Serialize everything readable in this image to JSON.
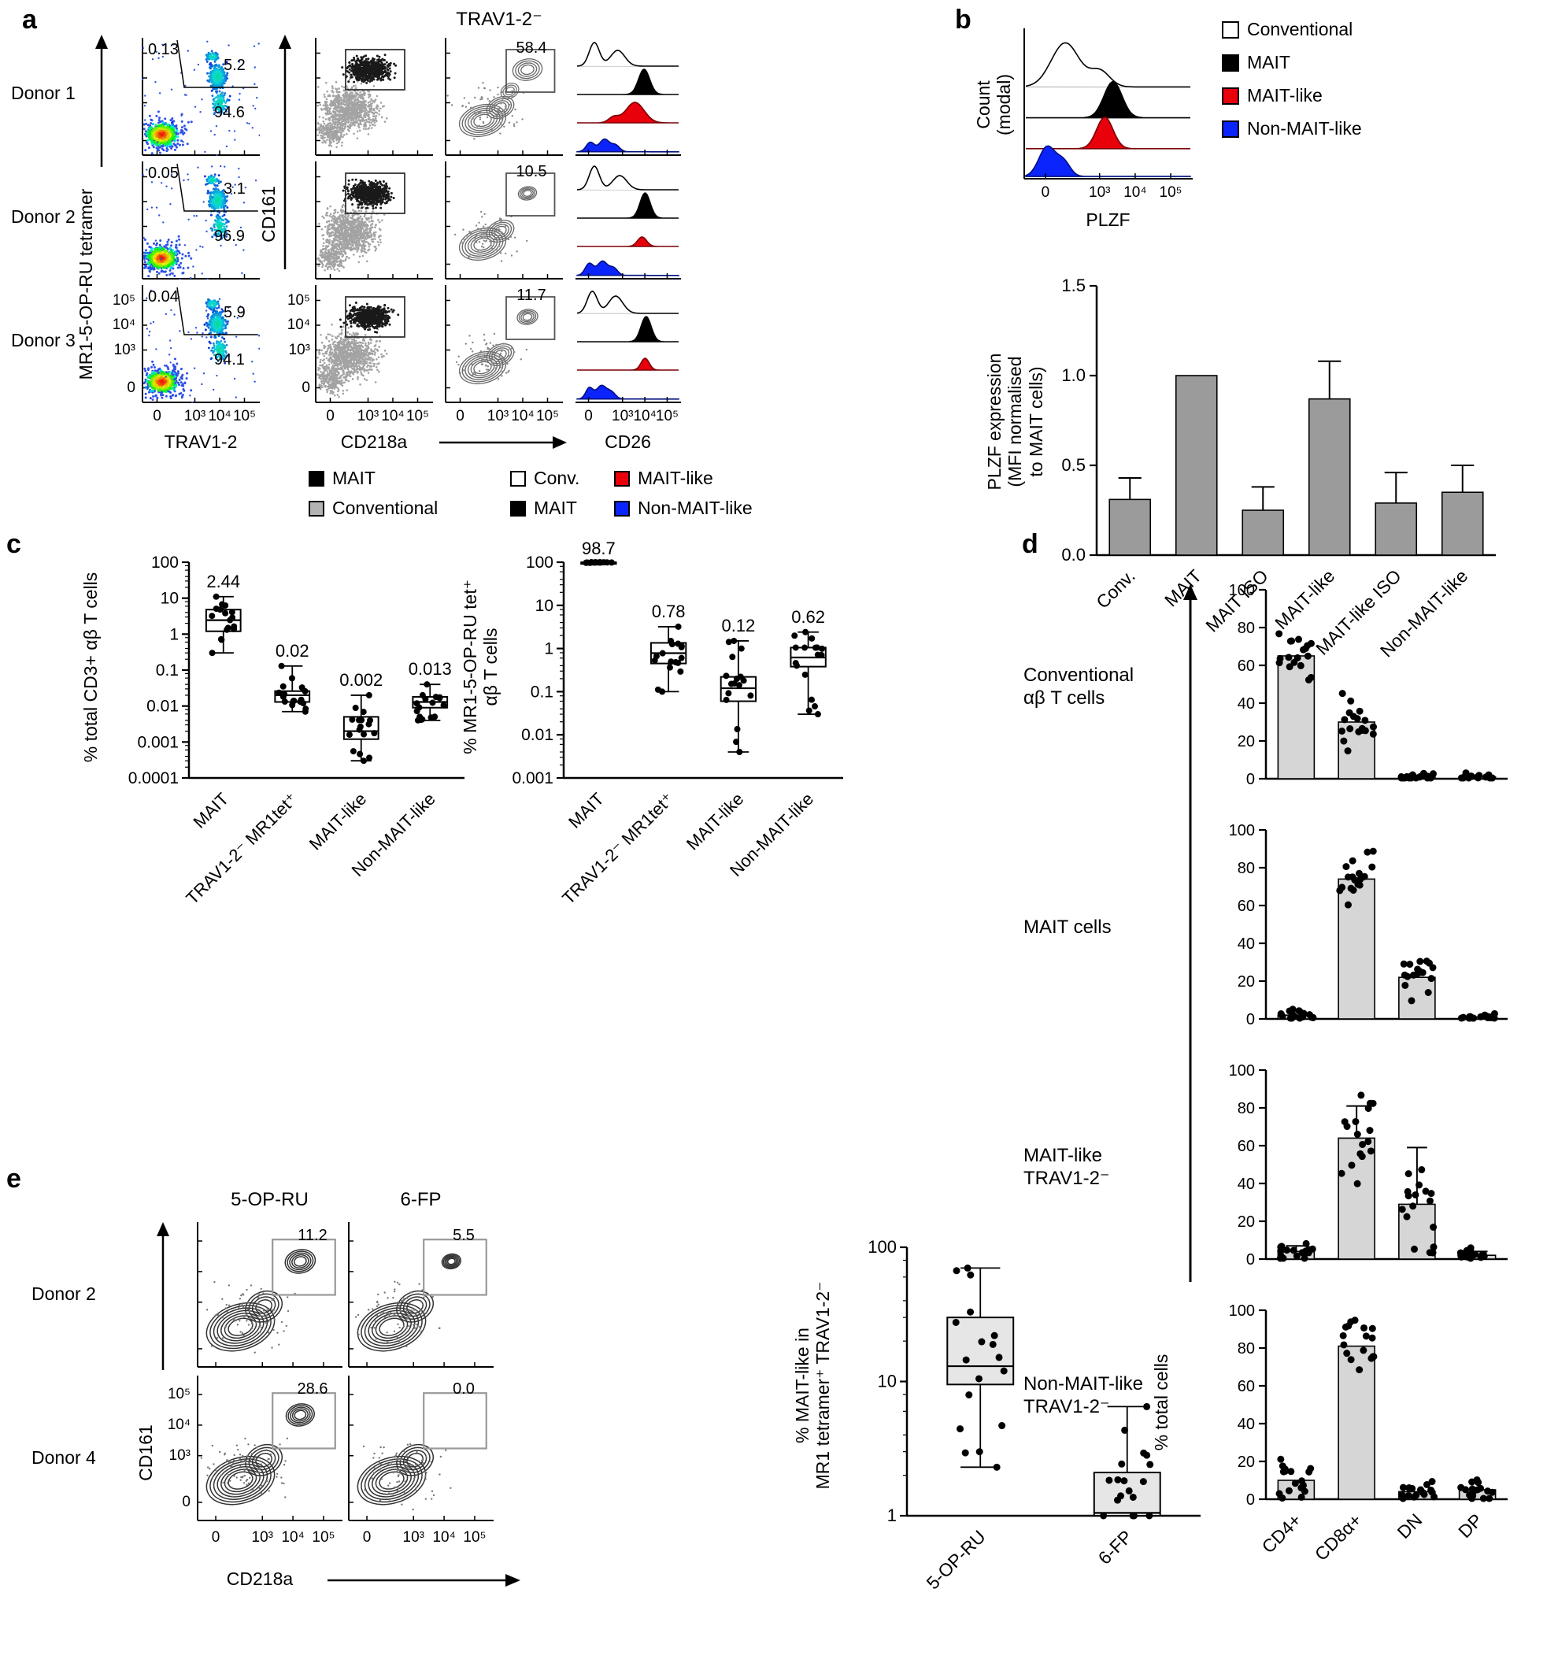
{
  "colors": {
    "mait_black": "#000000",
    "conventional_gray": "#b3b3b3",
    "conv_white": "#ffffff",
    "mait_like_red": "#e8000b",
    "non_mait_like_blue": "#0b24fb",
    "bar_gray": "#9b9b9b",
    "bar_light_gray": "#d6d6d6"
  },
  "panel_a": {
    "label": "a",
    "header": "TRAV1-2⁻",
    "donor_labels": [
      "Donor 1",
      "Donor 2",
      "Donor 3"
    ],
    "tetramer_axis": "MR1-5-OP-RU tetramer",
    "trav_axis": "TRAV1-2",
    "cd161_axis": "CD161",
    "cd218a_axis": "CD218a",
    "cd26_axis": "CD26",
    "log_ticks": [
      "0",
      "10³",
      "10⁴",
      "10⁵"
    ],
    "tetramer_gates": [
      {
        "upper_left": "0.13",
        "upper_right": "5.2",
        "lower_right": "94.6"
      },
      {
        "upper_left": "0.05",
        "upper_right": "3.1",
        "lower_right": "96.9"
      },
      {
        "upper_left": "0.04",
        "upper_right": "5.9",
        "lower_right": "94.1"
      }
    ],
    "cd26_gates": [
      "58.4",
      "10.5",
      "11.7"
    ],
    "legend_left": [
      {
        "label": "MAIT",
        "color": "#000000"
      },
      {
        "label": "Conventional",
        "color": "#b3b3b3"
      }
    ],
    "legend_right": [
      {
        "label": "Conv.",
        "color": "#ffffff"
      },
      {
        "label": "MAIT",
        "color": "#000000"
      },
      {
        "label": "MAIT-like",
        "color": "#e8000b"
      },
      {
        "label": "Non-MAIT-like",
        "color": "#0b24fb"
      }
    ]
  },
  "panel_b": {
    "label": "b",
    "hist": {
      "ylabel": "Count\n(modal)",
      "xlabel": "PLZF",
      "xticks": [
        "0",
        "10³",
        "10⁴",
        "10⁵"
      ]
    },
    "legend": [
      {
        "label": "Conventional",
        "color": "#ffffff"
      },
      {
        "label": "MAIT",
        "color": "#000000"
      },
      {
        "label": "MAIT-like",
        "color": "#e8000b"
      },
      {
        "label": "Non-MAIT-like",
        "color": "#0b24fb"
      }
    ]
  },
  "panel_c": {
    "label": "c"
  },
  "panel_d": {
    "label": "d",
    "row_labels": [
      "Conventional\nαβ T cells",
      "MAIT cells",
      "MAIT-like\nTRAV1-2⁻",
      "Non-MAIT-like\nTRAV1-2⁻"
    ],
    "ylabel": "% total cells"
  },
  "panel_e": {
    "label": "e",
    "col_headers": [
      "5-OP-RU",
      "6-FP"
    ],
    "row_labels": [
      "Donor 2",
      "Donor 4"
    ],
    "cd161_axis": "CD161",
    "cd218a_axis": "CD218a",
    "xticks": [
      "0",
      "10³",
      "10⁴",
      "10⁵"
    ],
    "yticks": [
      "0",
      "10³",
      "10⁴",
      "10⁵"
    ],
    "gates": [
      [
        "11.2",
        "5.5"
      ],
      [
        "28.6",
        "0.0"
      ]
    ]
  },
  "chart_data": [
    {
      "id": "plzf_hist",
      "type": "histogram",
      "xlabel": "PLZF",
      "ylabel": "Count (modal)",
      "xticks": [
        "0",
        "10³",
        "10⁴",
        "10⁵"
      ],
      "series": [
        {
          "name": "Conventional",
          "fill": "#ffffff",
          "outline": "#000000",
          "peak": "bimodal low PLZF"
        },
        {
          "name": "MAIT",
          "fill": "#000000",
          "peak": "high PLZF"
        },
        {
          "name": "MAIT-like",
          "fill": "#e8000b",
          "peak": "high PLZF"
        },
        {
          "name": "Non-MAIT-like",
          "fill": "#0b24fb",
          "peak": "low PLZF"
        }
      ]
    },
    {
      "id": "plzf_bar",
      "type": "bar",
      "ylabel": "PLZF expression\n(MFI normalised\nto MAIT cells)",
      "categories": [
        "Conv.",
        "MAIT",
        "MAIT ISO",
        "MAIT-like",
        "MAIT-like ISO",
        "Non-MAIT-like"
      ],
      "values": [
        0.31,
        1.0,
        0.25,
        0.87,
        0.29,
        0.35
      ],
      "errors": [
        0.12,
        0,
        0.13,
        0.21,
        0.17,
        0.15
      ],
      "ylim": [
        0,
        1.5
      ],
      "yticks": [
        "0.0",
        "0.5",
        "1.0",
        "1.5"
      ],
      "ytick_vals": [
        0,
        0.5,
        1.0,
        1.5
      ],
      "bar_color": "#9b9b9b"
    },
    {
      "id": "freq_total",
      "type": "box",
      "ylabel": "% total CD3+ αβ T cells",
      "yscale": "log",
      "ylim": [
        0.0001,
        100
      ],
      "yticks": [
        "100",
        "10",
        "1",
        "0.1",
        "0.01",
        "0.001",
        "0.0001"
      ],
      "ytick_vals": [
        100,
        10,
        1,
        0.1,
        0.01,
        0.001,
        0.0001
      ],
      "categories": [
        "MAIT",
        "TRAV1-2⁻ MR1tet⁺",
        "MAIT-like",
        "Non-MAIT-like"
      ],
      "annotations": [
        "2.44",
        "0.02",
        "0.002",
        "0.013"
      ],
      "boxes": [
        {
          "median": 2.44,
          "q1": 1.2,
          "q3": 4.8,
          "lo": 0.3,
          "hi": 11
        },
        {
          "median": 0.02,
          "q1": 0.013,
          "q3": 0.026,
          "lo": 0.007,
          "hi": 0.13
        },
        {
          "median": 0.002,
          "q1": 0.0012,
          "q3": 0.005,
          "lo": 0.0003,
          "hi": 0.02
        },
        {
          "median": 0.013,
          "q1": 0.009,
          "q3": 0.018,
          "lo": 0.004,
          "hi": 0.04
        }
      ],
      "n_points": 17
    },
    {
      "id": "freq_tet",
      "type": "box",
      "ylabel": "% MR1-5-OP-RU tet⁺\nαβ T cells",
      "yscale": "log",
      "ylim": [
        0.001,
        100
      ],
      "yticks": [
        "100",
        "10",
        "1",
        "0.1",
        "0.01",
        "0.001"
      ],
      "ytick_vals": [
        100,
        10,
        1,
        0.1,
        0.01,
        0.001
      ],
      "categories": [
        "MAIT",
        "TRAV1-2⁻ MR1tet⁺",
        "MAIT-like",
        "Non-MAIT-like"
      ],
      "annotations": [
        "98.7",
        "0.78",
        "0.12",
        "0.62"
      ],
      "boxes": [
        {
          "median": 98.7,
          "q1": 97.8,
          "q3": 99.3,
          "lo": 96.5,
          "hi": 99.9
        },
        {
          "median": 0.78,
          "q1": 0.45,
          "q3": 1.35,
          "lo": 0.1,
          "hi": 3.2
        },
        {
          "median": 0.12,
          "q1": 0.06,
          "q3": 0.22,
          "lo": 0.004,
          "hi": 1.5
        },
        {
          "median": 0.62,
          "q1": 0.38,
          "q3": 1.05,
          "lo": 0.03,
          "hi": 2.4
        }
      ],
      "n_points": 17
    },
    {
      "id": "pheno_conventional",
      "type": "bar",
      "categories": [
        "CD4+",
        "CD8α+",
        "DN",
        "DP"
      ],
      "values": [
        65,
        30,
        1,
        1
      ],
      "spread": [
        8,
        9,
        1.2,
        1.2
      ],
      "ylim": [
        0,
        100
      ],
      "yticks": [
        "0",
        "20",
        "40",
        "60",
        "80",
        "100"
      ],
      "ytick_vals": [
        0,
        20,
        40,
        60,
        80,
        100
      ],
      "bar_color": "#d6d6d6",
      "n_points": 18
    },
    {
      "id": "pheno_mait",
      "type": "bar",
      "categories": [
        "CD4+",
        "CD8α+",
        "DN",
        "DP"
      ],
      "values": [
        2,
        74,
        22,
        1
      ],
      "spread": [
        2,
        10,
        8,
        1.2
      ],
      "ylim": [
        0,
        100
      ],
      "yticks": [
        "0",
        "20",
        "40",
        "60",
        "80",
        "100"
      ],
      "ytick_vals": [
        0,
        20,
        40,
        60,
        80,
        100
      ],
      "bar_color": "#d6d6d6",
      "n_points": 18
    },
    {
      "id": "pheno_mait_like",
      "type": "bar",
      "categories": [
        "CD4+",
        "CD8α+",
        "DN",
        "DP"
      ],
      "values": [
        4,
        64,
        29,
        2
      ],
      "errors": [
        3,
        17,
        30,
        2
      ],
      "spread": [
        4,
        16,
        25,
        3
      ],
      "ylim": [
        0,
        100
      ],
      "yticks": [
        "0",
        "20",
        "40",
        "60",
        "80",
        "100"
      ],
      "ytick_vals": [
        0,
        20,
        40,
        60,
        80,
        100
      ],
      "bar_color": "#d6d6d6",
      "n_points": 17
    },
    {
      "id": "pheno_non_mait_like",
      "type": "bar",
      "categories": [
        "CD4+",
        "CD8α+",
        "DN",
        "DP"
      ],
      "values": [
        10,
        81,
        4,
        5
      ],
      "spread": [
        9,
        13,
        3.5,
        6
      ],
      "ylim": [
        0,
        100
      ],
      "yticks": [
        "0",
        "20",
        "40",
        "60",
        "80",
        "100"
      ],
      "ytick_vals": [
        0,
        20,
        40,
        60,
        80,
        100
      ],
      "bar_color": "#d6d6d6",
      "n_points": 17
    },
    {
      "id": "tet_box",
      "type": "box",
      "ylabel": "% MAIT-like in\nMR1 tetramer⁺ TRAV1-2⁻",
      "yscale": "log",
      "ylim": [
        1,
        100
      ],
      "yticks": [
        "100",
        "10",
        "1"
      ],
      "ytick_vals": [
        100,
        10,
        1
      ],
      "categories": [
        "5-OP-RU",
        "6-FP"
      ],
      "boxes": [
        {
          "median": 13,
          "q1": 9.5,
          "q3": 30,
          "lo": 2.3,
          "hi": 70
        },
        {
          "median": 1.05,
          "q1": 1.0,
          "q3": 2.1,
          "lo": 1.0,
          "hi": 6.5
        }
      ],
      "box_fill": "#e6e6e6",
      "n_points": 18
    },
    {
      "id": "cd26_hist",
      "type": "histogram",
      "xlabel": "CD26",
      "xticks": [
        "0",
        "10³",
        "10⁴",
        "10⁵"
      ],
      "series": [
        {
          "name": "Conv.",
          "fill": "#ffffff",
          "outline": "#000000"
        },
        {
          "name": "MAIT",
          "fill": "#000000"
        },
        {
          "name": "MAIT-like",
          "fill": "#e8000b"
        },
        {
          "name": "Non-MAIT-like",
          "fill": "#0b24fb"
        }
      ]
    }
  ]
}
